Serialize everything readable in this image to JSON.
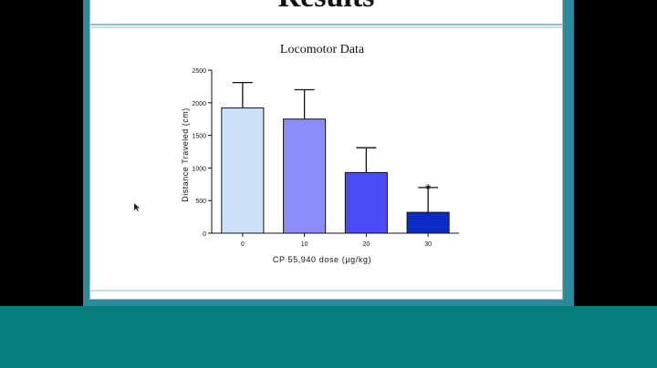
{
  "slide": {
    "title": "Results"
  },
  "chart_data": {
    "type": "bar",
    "title": "Locomotor Data",
    "xlabel": "CP 55,940 dose (µg/kg)",
    "ylabel": "Distance Traveled (cm)",
    "categories": [
      "0",
      "10",
      "20",
      "30"
    ],
    "values": [
      1920,
      1750,
      930,
      320
    ],
    "errors": [
      390,
      450,
      380,
      380
    ],
    "significance": [
      "",
      "",
      "",
      "*"
    ],
    "ylim": [
      0,
      2500
    ],
    "yticks": [
      "0",
      "500",
      "1000",
      "1500",
      "2000",
      "2500"
    ],
    "colors": [
      "#cce0fa",
      "#8c8cfb",
      "#4b4bf7",
      "#0b2bc4"
    ],
    "grid": false
  },
  "colors": {
    "background": "#000000",
    "teal_bar": "#067f7f",
    "frame": "#2b8a9a",
    "rule": "#9fc9d2"
  }
}
